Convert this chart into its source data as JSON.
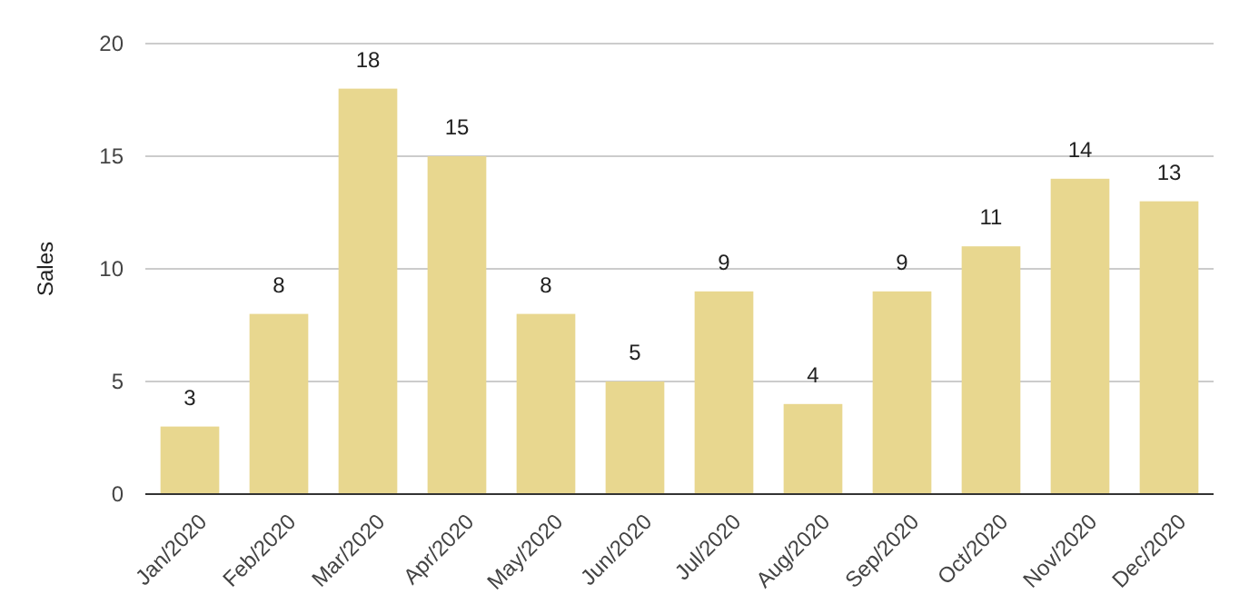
{
  "chart_data": {
    "type": "bar",
    "ylabel": "Sales",
    "categories": [
      "Jan/2020",
      "Feb/2020",
      "Mar/2020",
      "Apr/2020",
      "May/2020",
      "Jun/2020",
      "Jul/2020",
      "Aug/2020",
      "Sep/2020",
      "Oct/2020",
      "Nov/2020",
      "Dec/2020"
    ],
    "values": [
      3,
      8,
      18,
      15,
      8,
      5,
      9,
      4,
      9,
      11,
      14,
      13
    ],
    "color": "#e8d78f",
    "ylim": [
      0,
      20
    ],
    "yticks": [
      0,
      5,
      10,
      15,
      20
    ],
    "grid": "y",
    "data_labels": true
  }
}
